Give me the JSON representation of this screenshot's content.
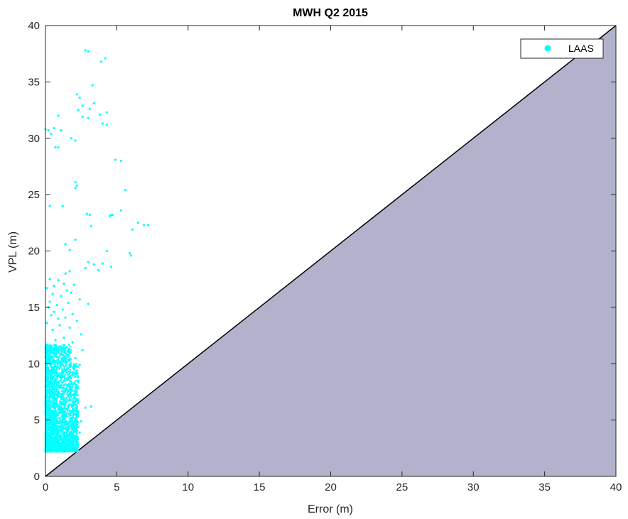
{
  "chart_data": {
    "type": "scatter",
    "title": "MWH Q2 2015",
    "xlabel": "Error (m)",
    "ylabel": "VPL (m)",
    "xlim": [
      0,
      40
    ],
    "ylim": [
      0,
      40
    ],
    "xticks": [
      "0",
      "5",
      "10",
      "15",
      "20",
      "25",
      "30",
      "35",
      "40"
    ],
    "yticks": [
      "0",
      "5",
      "10",
      "15",
      "20",
      "25",
      "30",
      "35",
      "40"
    ],
    "legend_position": "top-right",
    "grid": false,
    "colors": {
      "series": "#00ffff",
      "hmi_region": "#b2b2cc",
      "diagonal": "#000000"
    },
    "shaded_region": {
      "description_hidden": true,
      "from": [
        0,
        0
      ],
      "to": [
        40,
        40
      ]
    },
    "series": [
      {
        "name": "LAAS",
        "points": [
          [
            2.8,
            37.8
          ],
          [
            3.0,
            37.7
          ],
          [
            4.2,
            37.1
          ],
          [
            3.9,
            36.8
          ],
          [
            3.3,
            34.7
          ],
          [
            2.2,
            33.9
          ],
          [
            2.4,
            33.6
          ],
          [
            3.4,
            33.1
          ],
          [
            2.6,
            32.9
          ],
          [
            3.1,
            32.6
          ],
          [
            2.3,
            32.5
          ],
          [
            4.3,
            32.3
          ],
          [
            3.8,
            32.1
          ],
          [
            0.9,
            32.0
          ],
          [
            2.6,
            31.9
          ],
          [
            3.0,
            31.8
          ],
          [
            4.0,
            31.3
          ],
          [
            4.3,
            31.2
          ],
          [
            0.0,
            30.8
          ],
          [
            0.2,
            30.7
          ],
          [
            1.1,
            30.7
          ],
          [
            0.6,
            30.9
          ],
          [
            0.4,
            30.4
          ],
          [
            1.8,
            30.0
          ],
          [
            2.1,
            29.8
          ],
          [
            0.7,
            29.2
          ],
          [
            0.9,
            29.2
          ],
          [
            4.9,
            28.1
          ],
          [
            5.3,
            28.0
          ],
          [
            2.1,
            26.1
          ],
          [
            2.2,
            25.8
          ],
          [
            2.1,
            25.6
          ],
          [
            5.6,
            25.4
          ],
          [
            0.3,
            24.0
          ],
          [
            1.2,
            24.0
          ],
          [
            5.3,
            23.6
          ],
          [
            2.9,
            23.3
          ],
          [
            3.1,
            23.2
          ],
          [
            4.7,
            23.2
          ],
          [
            4.5,
            23.1
          ],
          [
            4.6,
            23.2
          ],
          [
            6.5,
            22.5
          ],
          [
            7.2,
            22.3
          ],
          [
            3.2,
            22.2
          ],
          [
            6.1,
            21.9
          ],
          [
            6.9,
            22.3
          ],
          [
            2.1,
            21.0
          ],
          [
            1.4,
            20.6
          ],
          [
            4.3,
            20.0
          ],
          [
            1.7,
            20.1
          ],
          [
            5.9,
            19.8
          ],
          [
            6.0,
            19.6
          ],
          [
            3.0,
            19.0
          ],
          [
            3.4,
            18.8
          ],
          [
            4.0,
            18.9
          ],
          [
            2.8,
            18.5
          ],
          [
            4.6,
            18.6
          ],
          [
            1.7,
            18.2
          ],
          [
            1.4,
            18.0
          ],
          [
            3.7,
            18.3
          ],
          [
            0.3,
            17.5
          ],
          [
            0.9,
            17.4
          ],
          [
            1.3,
            17.1
          ],
          [
            2.0,
            17.0
          ],
          [
            0.6,
            16.9
          ],
          [
            0.1,
            16.7
          ],
          [
            1.5,
            16.5
          ],
          [
            1.8,
            16.3
          ],
          [
            0.5,
            16.2
          ],
          [
            1.1,
            16.0
          ],
          [
            2.4,
            15.7
          ],
          [
            0.3,
            15.5
          ],
          [
            1.6,
            15.4
          ],
          [
            0.8,
            15.2
          ],
          [
            3.0,
            15.3
          ],
          [
            0.2,
            15.0
          ],
          [
            1.2,
            14.8
          ],
          [
            0.6,
            14.6
          ],
          [
            1.9,
            14.4
          ],
          [
            0.4,
            14.3
          ],
          [
            1.4,
            14.1
          ],
          [
            0.9,
            14.0
          ],
          [
            2.2,
            13.8
          ],
          [
            0.1,
            13.6
          ],
          [
            1.0,
            13.4
          ],
          [
            1.7,
            13.2
          ],
          [
            0.5,
            13.0
          ],
          [
            2.5,
            12.6
          ],
          [
            1.3,
            12.3
          ],
          [
            0.7,
            12.1
          ],
          [
            1.9,
            11.9
          ],
          [
            0.3,
            11.6
          ],
          [
            1.1,
            11.4
          ],
          [
            2.6,
            11.2
          ],
          [
            0.6,
            11.0
          ],
          [
            1.6,
            10.8
          ],
          [
            2.1,
            10.5
          ],
          [
            0.2,
            10.3
          ],
          [
            1.0,
            10.1
          ],
          [
            2.4,
            9.9
          ],
          [
            0.8,
            9.7
          ],
          [
            1.5,
            9.5
          ],
          [
            2.0,
            9.2
          ],
          [
            0.4,
            9.0
          ],
          [
            1.2,
            8.8
          ],
          [
            2.3,
            8.5
          ],
          [
            0.9,
            8.3
          ],
          [
            1.7,
            8.0
          ],
          [
            0.3,
            7.8
          ],
          [
            1.4,
            7.6
          ],
          [
            2.1,
            7.3
          ],
          [
            0.6,
            7.1
          ],
          [
            1.1,
            6.9
          ],
          [
            1.9,
            6.6
          ],
          [
            0.2,
            6.4
          ],
          [
            0.8,
            6.2
          ],
          [
            1.5,
            6.0
          ],
          [
            2.2,
            5.8
          ],
          [
            3.2,
            6.2
          ],
          [
            2.8,
            6.1
          ],
          [
            0.5,
            5.6
          ],
          [
            1.2,
            5.4
          ],
          [
            1.8,
            5.2
          ],
          [
            0.1,
            5.0
          ],
          [
            0.9,
            4.8
          ],
          [
            1.4,
            4.6
          ],
          [
            2.0,
            4.5
          ],
          [
            0.4,
            4.3
          ],
          [
            1.0,
            4.1
          ],
          [
            1.7,
            3.9
          ],
          [
            0.2,
            3.7
          ],
          [
            0.7,
            3.5
          ],
          [
            1.3,
            3.3
          ],
          [
            1.9,
            3.5
          ],
          [
            0.5,
            3.1
          ],
          [
            1.1,
            2.9
          ],
          [
            1.6,
            2.7
          ],
          [
            0.3,
            2.6
          ],
          [
            0.8,
            2.4
          ],
          [
            1.5,
            2.8
          ],
          [
            2.4,
            3.9
          ],
          [
            0.1,
            2.2
          ],
          [
            0.6,
            2.3
          ],
          [
            1.2,
            2.5
          ],
          [
            2.5,
            4.9
          ]
        ]
      }
    ]
  }
}
